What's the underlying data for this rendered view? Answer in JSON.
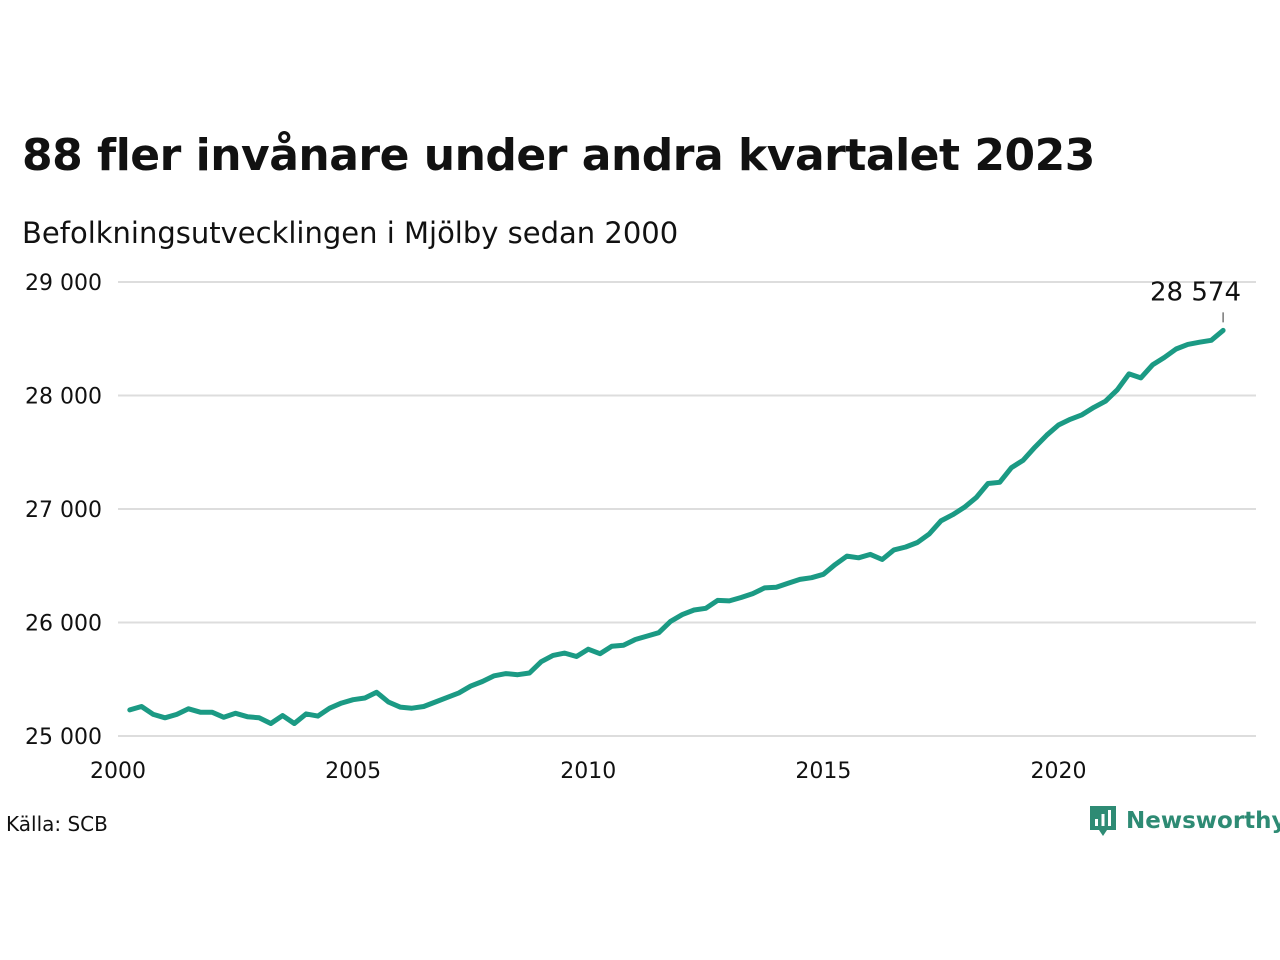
{
  "title": "88 fler invånare under andra kvartalet 2023",
  "subtitle": "Befolkningsutvecklingen i Mjölby sedan 2000",
  "source": "Källa: SCB",
  "brand": {
    "name": "Newsworthy",
    "color": "#2e8b74",
    "icon": "newsworthy-logo-icon"
  },
  "colors": {
    "line": "#1b9a84",
    "grid": "#dddddd",
    "text": "#111111"
  },
  "chart_data": {
    "type": "line",
    "title": "88 fler invånare under andra kvartalet 2023",
    "subtitle": "Befolkningsutvecklingen i Mjölby sedan 2000",
    "xlabel": "",
    "ylabel": "",
    "grid": true,
    "xlim": [
      2000,
      2024.2
    ],
    "ylim": [
      25000,
      29000
    ],
    "x_ticks": [
      2000,
      2005,
      2010,
      2015,
      2020
    ],
    "x_tick_labels": [
      "2000",
      "2005",
      "2010",
      "2015",
      "2020"
    ],
    "y_ticks": [
      25000,
      26000,
      27000,
      28000,
      29000
    ],
    "y_tick_labels": [
      "25 000",
      "26 000",
      "27 000",
      "28 000",
      "29 000"
    ],
    "end_label": "28 574",
    "x": [
      2000.25,
      2000.5,
      2000.75,
      2001.0,
      2001.25,
      2001.5,
      2001.75,
      2002.0,
      2002.25,
      2002.5,
      2002.75,
      2003.0,
      2003.25,
      2003.5,
      2003.75,
      2004.0,
      2004.25,
      2004.5,
      2004.75,
      2005.0,
      2005.25,
      2005.5,
      2005.75,
      2006.0,
      2006.25,
      2006.5,
      2006.75,
      2007.0,
      2007.25,
      2007.5,
      2007.75,
      2008.0,
      2008.25,
      2008.5,
      2008.75,
      2009.0,
      2009.25,
      2009.5,
      2009.75,
      2010.0,
      2010.25,
      2010.5,
      2010.75,
      2011.0,
      2011.25,
      2011.5,
      2011.75,
      2012.0,
      2012.25,
      2012.5,
      2012.75,
      2013.0,
      2013.25,
      2013.5,
      2013.75,
      2014.0,
      2014.25,
      2014.5,
      2014.75,
      2015.0,
      2015.25,
      2015.5,
      2015.75,
      2016.0,
      2016.25,
      2016.5,
      2016.75,
      2017.0,
      2017.25,
      2017.5,
      2017.75,
      2018.0,
      2018.25,
      2018.5,
      2018.75,
      2019.0,
      2019.25,
      2019.5,
      2019.75,
      2020.0,
      2020.25,
      2020.5,
      2020.75,
      2021.0,
      2021.25,
      2021.5,
      2021.75,
      2022.0,
      2022.25,
      2022.5,
      2022.75,
      2023.0,
      2023.25,
      2023.5
    ],
    "series": [
      {
        "values": [
          25230,
          25260,
          25190,
          25160,
          25190,
          25240,
          25210,
          25210,
          25165,
          25200,
          25170,
          25160,
          25110,
          25180,
          25110,
          25195,
          25175,
          25245,
          25290,
          25320,
          25335,
          25385,
          25300,
          25255,
          25245,
          25260,
          25300,
          25340,
          25380,
          25440,
          25480,
          25530,
          25550,
          25540,
          25555,
          25655,
          25710,
          25730,
          25700,
          25765,
          25725,
          25790,
          25800,
          25850,
          25880,
          25910,
          26010,
          26070,
          26110,
          26125,
          26195,
          26190,
          26220,
          26255,
          26305,
          26310,
          26345,
          26380,
          26395,
          26425,
          26510,
          26585,
          26570,
          26600,
          26555,
          26640,
          26665,
          26705,
          26780,
          26895,
          26950,
          27015,
          27100,
          27225,
          27235,
          27365,
          27430,
          27545,
          27650,
          27740,
          27790,
          27830,
          27895,
          27950,
          28050,
          28190,
          28155,
          28270,
          28335,
          28410,
          28450,
          28470,
          28486,
          28574
        ]
      }
    ]
  }
}
